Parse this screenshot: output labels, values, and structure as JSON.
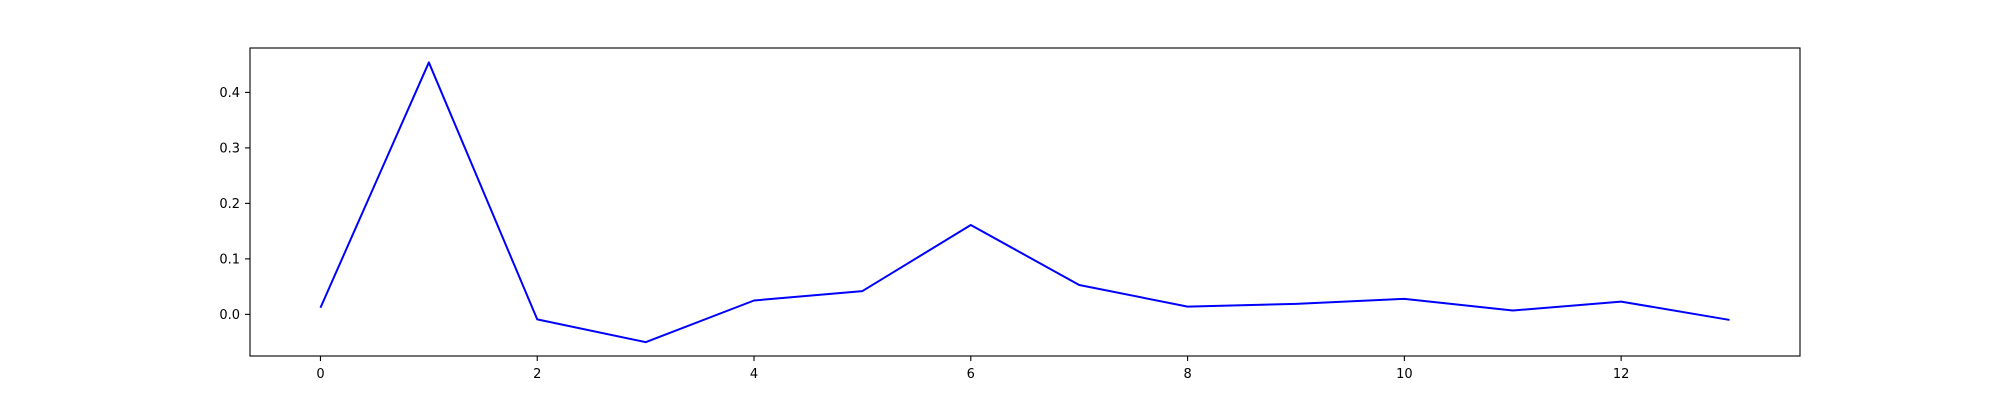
{
  "chart_data": {
    "type": "line",
    "title": "",
    "xlabel": "",
    "ylabel": "",
    "xlim": [
      -0.65,
      13.65
    ],
    "ylim": [
      -0.075,
      0.48
    ],
    "grid": false,
    "x_ticks": [
      0,
      2,
      4,
      6,
      8,
      10,
      12
    ],
    "x_tick_labels": [
      "0",
      "2",
      "4",
      "6",
      "8",
      "10",
      "12"
    ],
    "y_ticks": [
      0.0,
      0.1,
      0.2,
      0.3,
      0.4
    ],
    "y_tick_labels": [
      "0.0",
      "0.1",
      "0.2",
      "0.3",
      "0.4"
    ],
    "series": [
      {
        "color": "#0000ff",
        "x": [
          0,
          1,
          2,
          3,
          4,
          5,
          6,
          7,
          8,
          9,
          10,
          11,
          12,
          13
        ],
        "y": [
          0.012,
          0.454,
          -0.009,
          -0.05,
          0.025,
          0.042,
          0.161,
          0.053,
          0.014,
          0.019,
          0.028,
          0.007,
          0.023,
          -0.01
        ]
      }
    ]
  }
}
